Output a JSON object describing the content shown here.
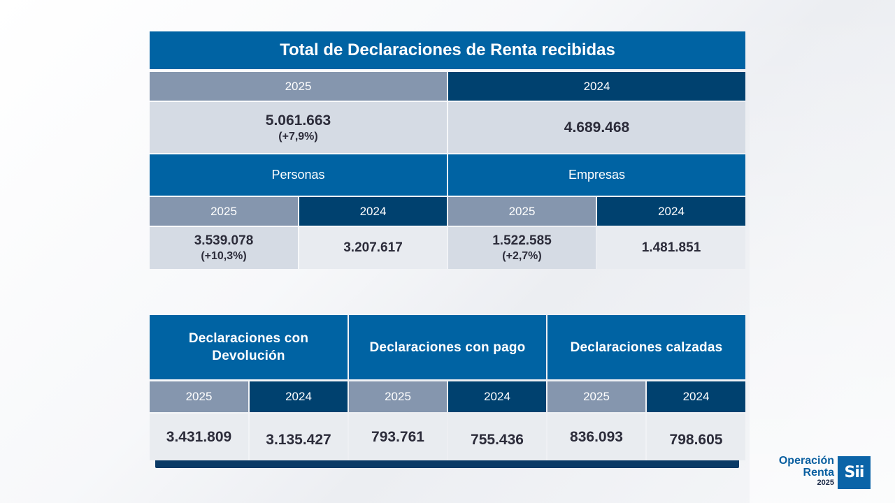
{
  "top_table": {
    "title": "Total de Declaraciones de Renta recibidas",
    "total": {
      "year_2025": "2025",
      "year_2024": "2024",
      "value_2025": "5.061.663",
      "change_2025": "(+7,9%)",
      "value_2024": "4.689.468"
    },
    "personas": {
      "label": "Personas",
      "year_2025": "2025",
      "year_2024": "2024",
      "value_2025": "3.539.078",
      "change_2025": "(+10,3%)",
      "value_2024": "3.207.617"
    },
    "empresas": {
      "label": "Empresas",
      "year_2025": "2025",
      "year_2024": "2024",
      "value_2025": "1.522.585",
      "change_2025": "(+2,7%)",
      "value_2024": "1.481.851"
    }
  },
  "bottom_table": {
    "devolucion": {
      "label": "Declaraciones con Devolución",
      "year_2025": "2025",
      "year_2024": "2024",
      "value_2025": "3.431.809",
      "value_2024": "3.135.427"
    },
    "pago": {
      "label": "Declaraciones con pago",
      "year_2025": "2025",
      "year_2024": "2024",
      "value_2025": "793.761",
      "value_2024": "755.436"
    },
    "calzadas": {
      "label": "Declaraciones calzadas",
      "year_2025": "2025",
      "year_2024": "2024",
      "value_2025": "836.093",
      "value_2024": "798.605"
    }
  },
  "logo": {
    "line1": "Operación",
    "line2": "Renta",
    "line3": "2025",
    "badge": "Sii"
  },
  "colors": {
    "primary_blue": "#0063a3",
    "dark_blue": "#00416f",
    "gray_blue": "#8596ae",
    "cell_light": "#d5dbe4",
    "cell_lighter": "#e8ebf0"
  }
}
